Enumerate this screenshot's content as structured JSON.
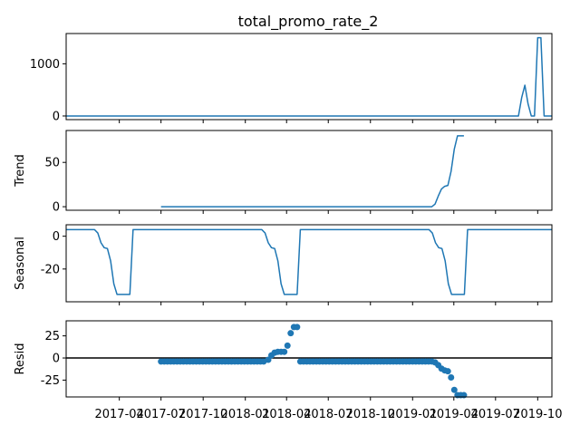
{
  "chart_data": {
    "type": "line",
    "title": "total_promo_rate_2",
    "colors": {
      "series": "#1f77b4",
      "axes": "#000000",
      "zero_line": "#000000"
    },
    "x_range": [
      "2016-12-06",
      "2019-11-01"
    ],
    "x_ticks": [
      {
        "date": "2017-04-01",
        "label": "2017-04"
      },
      {
        "date": "2017-07-01",
        "label": "2017-07"
      },
      {
        "date": "2017-10-01",
        "label": "2017-10"
      },
      {
        "date": "2018-01-01",
        "label": "2018-01"
      },
      {
        "date": "2018-04-01",
        "label": "2018-04"
      },
      {
        "date": "2018-07-01",
        "label": "2018-07"
      },
      {
        "date": "2018-10-01",
        "label": "2018-10"
      },
      {
        "date": "2019-01-01",
        "label": "2019-01"
      },
      {
        "date": "2019-04-01",
        "label": "2019-04"
      },
      {
        "date": "2019-07-01",
        "label": "2019-07"
      },
      {
        "date": "2019-10-01",
        "label": "2019-10"
      }
    ],
    "panels": [
      {
        "id": "observed",
        "ylabel": "",
        "type": "line",
        "ylim": [
          -70,
          1580
        ],
        "yticks": [
          0,
          1000
        ],
        "points": [
          [
            "2016-12-06",
            0
          ],
          [
            "2019-08-20",
            0
          ],
          [
            "2019-08-27",
            350
          ],
          [
            "2019-09-03",
            590
          ],
          [
            "2019-09-10",
            230
          ],
          [
            "2019-09-17",
            0
          ],
          [
            "2019-09-24",
            0
          ],
          [
            "2019-10-01",
            1500
          ],
          [
            "2019-10-08",
            1500
          ],
          [
            "2019-10-15",
            0
          ],
          [
            "2019-11-01",
            0
          ]
        ]
      },
      {
        "id": "trend",
        "ylabel": "Trend",
        "type": "line",
        "ylim": [
          -4,
          86
        ],
        "yticks": [
          0,
          50
        ],
        "points": [
          [
            "2017-07-01",
            0
          ],
          [
            "2019-02-12",
            0
          ],
          [
            "2019-02-19",
            3
          ],
          [
            "2019-02-26",
            12
          ],
          [
            "2019-03-05",
            20
          ],
          [
            "2019-03-12",
            23
          ],
          [
            "2019-03-19",
            24
          ],
          [
            "2019-03-26",
            40
          ],
          [
            "2019-04-02",
            65
          ],
          [
            "2019-04-09",
            80
          ],
          [
            "2019-04-23",
            80
          ]
        ]
      },
      {
        "id": "seasonal",
        "ylabel": "Seasonal",
        "type": "line",
        "ylim": [
          -40,
          7
        ],
        "yticks": [
          0,
          -20
        ],
        "points": [
          [
            "2016-12-06",
            4
          ],
          [
            "2017-02-06",
            4
          ],
          [
            "2017-02-13",
            2
          ],
          [
            "2017-02-20",
            -4
          ],
          [
            "2017-02-27",
            -7
          ],
          [
            "2017-03-06",
            -7.5
          ],
          [
            "2017-03-13",
            -15
          ],
          [
            "2017-03-20",
            -29
          ],
          [
            "2017-03-27",
            -35.5
          ],
          [
            "2017-04-24",
            -35.5
          ],
          [
            "2017-05-01",
            4
          ],
          [
            "2018-02-06",
            4
          ],
          [
            "2018-02-13",
            2
          ],
          [
            "2018-02-20",
            -4
          ],
          [
            "2018-02-27",
            -7
          ],
          [
            "2018-03-06",
            -7.5
          ],
          [
            "2018-03-13",
            -15
          ],
          [
            "2018-03-20",
            -29
          ],
          [
            "2018-03-27",
            -35.5
          ],
          [
            "2018-04-24",
            -35.5
          ],
          [
            "2018-05-01",
            4
          ],
          [
            "2019-02-06",
            4
          ],
          [
            "2019-02-13",
            2
          ],
          [
            "2019-02-20",
            -4
          ],
          [
            "2019-02-27",
            -7
          ],
          [
            "2019-03-06",
            -7.5
          ],
          [
            "2019-03-13",
            -15
          ],
          [
            "2019-03-20",
            -29
          ],
          [
            "2019-03-27",
            -35.5
          ],
          [
            "2019-04-24",
            -35.5
          ],
          [
            "2019-05-01",
            4
          ],
          [
            "2019-11-01",
            4
          ]
        ]
      },
      {
        "id": "resid",
        "ylabel": "Resid",
        "type": "scatter",
        "ylim": [
          -44,
          42
        ],
        "yticks": [
          25,
          0,
          -25
        ],
        "baseline": 0,
        "flat_segments": [
          {
            "from": "2017-07-01",
            "to": "2018-02-13",
            "step_days": 7,
            "value": -4
          },
          {
            "from": "2018-05-01",
            "to": "2019-02-05",
            "step_days": 7,
            "value": -4
          }
        ],
        "points": [
          [
            "2018-02-20",
            -2
          ],
          [
            "2018-02-27",
            3
          ],
          [
            "2018-03-06",
            6
          ],
          [
            "2018-03-13",
            7
          ],
          [
            "2018-03-20",
            7
          ],
          [
            "2018-03-27",
            7
          ],
          [
            "2018-04-03",
            14
          ],
          [
            "2018-04-10",
            28
          ],
          [
            "2018-04-17",
            35
          ],
          [
            "2018-04-24",
            35
          ],
          [
            "2019-02-12",
            -4
          ],
          [
            "2019-02-19",
            -5
          ],
          [
            "2019-02-26",
            -8
          ],
          [
            "2019-03-05",
            -12
          ],
          [
            "2019-03-12",
            -14
          ],
          [
            "2019-03-19",
            -15
          ],
          [
            "2019-03-26",
            -22
          ],
          [
            "2019-04-02",
            -36
          ],
          [
            "2019-04-09",
            -42
          ],
          [
            "2019-04-16",
            -42
          ],
          [
            "2019-04-23",
            -42
          ]
        ]
      }
    ]
  }
}
